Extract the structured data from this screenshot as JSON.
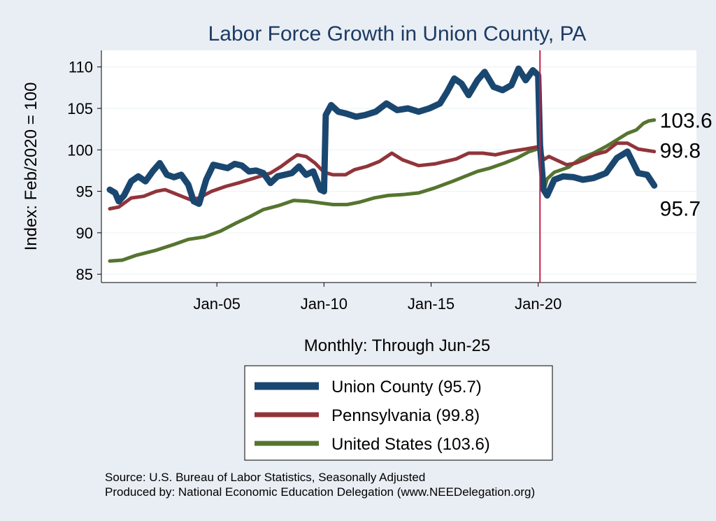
{
  "chart_data": {
    "type": "line",
    "title": "Labor Force Growth in Union  County, PA",
    "xlabel": "Monthly: Through Jun-25",
    "ylabel": "Index: Feb/2020 = 100",
    "ylim": [
      84,
      112
    ],
    "y_ticks": [
      85,
      90,
      95,
      100,
      105,
      110
    ],
    "x_range": [
      "Jan-00",
      "Jun-25"
    ],
    "x_ticks": [
      {
        "date": "2005-01",
        "label": "Jan-05"
      },
      {
        "date": "2010-01",
        "label": "Jan-10"
      },
      {
        "date": "2015-01",
        "label": "Jan-15"
      },
      {
        "date": "2020-01",
        "label": "Jan-20"
      }
    ],
    "vline": {
      "date": "2020-02"
    },
    "grid": true,
    "series": [
      {
        "name": "Union  County",
        "legend_label": "Union  County (95.7)",
        "end_value_label": "95.7",
        "color": "#1a476f",
        "points": [
          [
            "2000-01",
            95.2
          ],
          [
            "2000-04",
            94.8
          ],
          [
            "2000-06",
            93.8
          ],
          [
            "2000-09",
            94.5
          ],
          [
            "2001-01",
            96.2
          ],
          [
            "2001-05",
            96.8
          ],
          [
            "2001-09",
            96.2
          ],
          [
            "2002-01",
            97.4
          ],
          [
            "2002-05",
            98.4
          ],
          [
            "2002-09",
            97.0
          ],
          [
            "2003-01",
            96.7
          ],
          [
            "2003-05",
            97.0
          ],
          [
            "2003-09",
            95.8
          ],
          [
            "2003-12",
            93.8
          ],
          [
            "2004-03",
            93.5
          ],
          [
            "2004-07",
            96.4
          ],
          [
            "2004-11",
            98.2
          ],
          [
            "2005-03",
            98.0
          ],
          [
            "2005-07",
            97.8
          ],
          [
            "2005-11",
            98.3
          ],
          [
            "2006-03",
            98.1
          ],
          [
            "2006-07",
            97.4
          ],
          [
            "2006-11",
            97.5
          ],
          [
            "2007-03",
            97.2
          ],
          [
            "2007-07",
            96.0
          ],
          [
            "2007-11",
            96.8
          ],
          [
            "2008-03",
            97.0
          ],
          [
            "2008-07",
            97.2
          ],
          [
            "2008-11",
            98.0
          ],
          [
            "2009-03",
            97.0
          ],
          [
            "2009-07",
            97.4
          ],
          [
            "2009-11",
            95.2
          ],
          [
            "2010-01",
            95.0
          ],
          [
            "2010-02",
            104.2
          ],
          [
            "2010-05",
            105.4
          ],
          [
            "2010-09",
            104.6
          ],
          [
            "2011-01",
            104.4
          ],
          [
            "2011-07",
            104.0
          ],
          [
            "2011-12",
            104.2
          ],
          [
            "2012-06",
            104.6
          ],
          [
            "2012-12",
            105.6
          ],
          [
            "2013-06",
            104.8
          ],
          [
            "2013-12",
            105.0
          ],
          [
            "2014-06",
            104.6
          ],
          [
            "2014-12",
            105.0
          ],
          [
            "2015-06",
            105.6
          ],
          [
            "2015-10",
            107.0
          ],
          [
            "2016-02",
            108.6
          ],
          [
            "2016-06",
            108.0
          ],
          [
            "2016-10",
            106.6
          ],
          [
            "2017-03",
            108.4
          ],
          [
            "2017-07",
            109.4
          ],
          [
            "2017-12",
            107.6
          ],
          [
            "2018-05",
            107.2
          ],
          [
            "2018-10",
            107.8
          ],
          [
            "2019-02",
            109.8
          ],
          [
            "2019-06",
            108.4
          ],
          [
            "2019-10",
            109.6
          ],
          [
            "2020-01",
            109.0
          ],
          [
            "2020-02",
            100.6
          ],
          [
            "2020-04",
            95.2
          ],
          [
            "2020-06",
            94.5
          ],
          [
            "2020-10",
            96.4
          ],
          [
            "2021-03",
            96.8
          ],
          [
            "2021-09",
            96.7
          ],
          [
            "2022-02",
            96.4
          ],
          [
            "2022-08",
            96.6
          ],
          [
            "2023-03",
            97.2
          ],
          [
            "2023-09",
            99.0
          ],
          [
            "2024-03",
            99.8
          ],
          [
            "2024-09",
            97.2
          ],
          [
            "2025-02",
            97.0
          ],
          [
            "2025-06",
            95.7
          ]
        ]
      },
      {
        "name": "Pennsylvania",
        "legend_label": "Pennsylvania (99.8)",
        "end_value_label": "99.8",
        "color": "#90353b",
        "points": [
          [
            "2000-01",
            92.9
          ],
          [
            "2000-06",
            93.1
          ],
          [
            "2001-01",
            94.2
          ],
          [
            "2001-08",
            94.4
          ],
          [
            "2002-03",
            95.0
          ],
          [
            "2002-08",
            95.2
          ],
          [
            "2003-03",
            94.6
          ],
          [
            "2003-10",
            94.0
          ],
          [
            "2004-03",
            94.2
          ],
          [
            "2004-10",
            95.0
          ],
          [
            "2005-06",
            95.6
          ],
          [
            "2006-01",
            96.0
          ],
          [
            "2006-07",
            96.4
          ],
          [
            "2007-01",
            96.8
          ],
          [
            "2007-07",
            97.2
          ],
          [
            "2008-01",
            98.0
          ],
          [
            "2008-06",
            98.8
          ],
          [
            "2008-10",
            99.4
          ],
          [
            "2009-03",
            99.2
          ],
          [
            "2009-08",
            98.4
          ],
          [
            "2010-01",
            97.3
          ],
          [
            "2010-06",
            97.0
          ],
          [
            "2011-01",
            97.0
          ],
          [
            "2011-06",
            97.6
          ],
          [
            "2012-01",
            98.0
          ],
          [
            "2012-08",
            98.6
          ],
          [
            "2013-03",
            99.6
          ],
          [
            "2013-09",
            98.8
          ],
          [
            "2014-06",
            98.1
          ],
          [
            "2015-03",
            98.3
          ],
          [
            "2016-03",
            98.9
          ],
          [
            "2016-10",
            99.6
          ],
          [
            "2017-06",
            99.6
          ],
          [
            "2018-01",
            99.4
          ],
          [
            "2018-09",
            99.8
          ],
          [
            "2019-06",
            100.1
          ],
          [
            "2020-02",
            100.4
          ],
          [
            "2020-04",
            98.8
          ],
          [
            "2020-07",
            99.2
          ],
          [
            "2020-11",
            98.8
          ],
          [
            "2021-05",
            98.2
          ],
          [
            "2021-10",
            98.4
          ],
          [
            "2022-03",
            98.8
          ],
          [
            "2022-08",
            99.4
          ],
          [
            "2023-03",
            99.8
          ],
          [
            "2023-09",
            100.8
          ],
          [
            "2024-03",
            100.8
          ],
          [
            "2024-09",
            100.1
          ],
          [
            "2025-06",
            99.8
          ]
        ]
      },
      {
        "name": "United States",
        "legend_label": "United States (103.6)",
        "end_value_label": "103.6",
        "color": "#55752f",
        "points": [
          [
            "2000-01",
            86.6
          ],
          [
            "2000-08",
            86.7
          ],
          [
            "2001-04",
            87.3
          ],
          [
            "2002-03",
            87.9
          ],
          [
            "2003-01",
            88.6
          ],
          [
            "2003-09",
            89.2
          ],
          [
            "2004-06",
            89.5
          ],
          [
            "2005-03",
            90.2
          ],
          [
            "2005-12",
            91.2
          ],
          [
            "2006-08",
            92.0
          ],
          [
            "2007-03",
            92.8
          ],
          [
            "2007-12",
            93.3
          ],
          [
            "2008-08",
            93.9
          ],
          [
            "2009-04",
            93.8
          ],
          [
            "2009-11",
            93.6
          ],
          [
            "2010-06",
            93.4
          ],
          [
            "2011-02",
            93.4
          ],
          [
            "2011-09",
            93.7
          ],
          [
            "2012-05",
            94.2
          ],
          [
            "2013-01",
            94.5
          ],
          [
            "2013-09",
            94.6
          ],
          [
            "2014-06",
            94.8
          ],
          [
            "2015-03",
            95.4
          ],
          [
            "2016-01",
            96.2
          ],
          [
            "2016-08",
            96.8
          ],
          [
            "2017-03",
            97.4
          ],
          [
            "2017-10",
            97.8
          ],
          [
            "2018-06",
            98.4
          ],
          [
            "2019-01",
            99.0
          ],
          [
            "2019-08",
            99.8
          ],
          [
            "2020-02",
            100.2
          ],
          [
            "2020-04",
            95.0
          ],
          [
            "2020-06",
            96.5
          ],
          [
            "2020-10",
            97.3
          ],
          [
            "2021-06",
            97.9
          ],
          [
            "2022-01",
            99.0
          ],
          [
            "2022-08",
            99.6
          ],
          [
            "2023-03",
            100.4
          ],
          [
            "2023-09",
            101.2
          ],
          [
            "2024-03",
            102.0
          ],
          [
            "2024-08",
            102.4
          ],
          [
            "2024-12",
            103.2
          ],
          [
            "2025-03",
            103.5
          ],
          [
            "2025-06",
            103.6
          ]
        ]
      }
    ]
  },
  "notes": {
    "source": "Source: U.S. Bureau of Labor Statistics, Seasonally Adjusted",
    "produced_by": "Produced by: National Economic Education Delegation (www.NEEDelegation.org)"
  }
}
